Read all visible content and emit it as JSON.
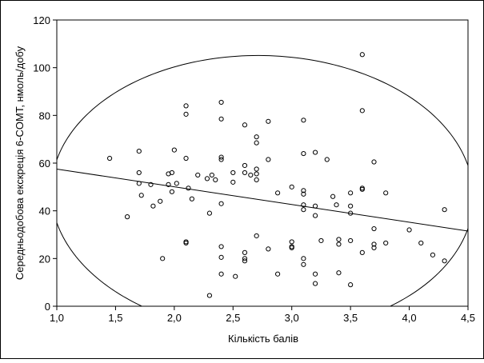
{
  "chart_data": {
    "type": "scatter",
    "title": "",
    "xlabel": "Кількість балів",
    "ylabel": "Середньодобова екскреція 6-COMT, нмоль/добу",
    "xlim": [
      1.0,
      4.5
    ],
    "ylim": [
      0,
      120
    ],
    "x_ticks": [
      "1,0",
      "1,5",
      "2,0",
      "2,5",
      "3,0",
      "3,5",
      "4,0",
      "4,5"
    ],
    "y_ticks": [
      "0",
      "20",
      "40",
      "60",
      "80",
      "100",
      "120"
    ],
    "grid": false,
    "legend": "none",
    "marker": "open-circle",
    "regression_line": {
      "x": [
        1.0,
        4.5
      ],
      "y": [
        57.5,
        31.5
      ]
    },
    "confidence_ellipse": {
      "center": [
        2.75,
        47.0
      ],
      "semi_axis_x": 1.8,
      "semi_axis_y": 58.0,
      "rotation_deg": -10
    },
    "points": [
      [
        1.45,
        62
      ],
      [
        1.6,
        37.5
      ],
      [
        1.7,
        65
      ],
      [
        1.7,
        56
      ],
      [
        1.7,
        51.5
      ],
      [
        1.72,
        46.5
      ],
      [
        1.8,
        51
      ],
      [
        1.82,
        42
      ],
      [
        1.88,
        44
      ],
      [
        1.9,
        20
      ],
      [
        1.95,
        55.5
      ],
      [
        1.95,
        51
      ],
      [
        1.98,
        56
      ],
      [
        1.98,
        48
      ],
      [
        2.0,
        65.5
      ],
      [
        2.02,
        51.5
      ],
      [
        2.1,
        84
      ],
      [
        2.1,
        80.5
      ],
      [
        2.1,
        62
      ],
      [
        2.1,
        27
      ],
      [
        2.1,
        26.5
      ],
      [
        2.12,
        49.5
      ],
      [
        2.15,
        45
      ],
      [
        2.2,
        55
      ],
      [
        2.28,
        53.5
      ],
      [
        2.3,
        39
      ],
      [
        2.3,
        4.5
      ],
      [
        2.32,
        55
      ],
      [
        2.35,
        53
      ],
      [
        2.4,
        85.5
      ],
      [
        2.4,
        78.5
      ],
      [
        2.4,
        62.5
      ],
      [
        2.4,
        61.5
      ],
      [
        2.4,
        43
      ],
      [
        2.4,
        25
      ],
      [
        2.4,
        20.5
      ],
      [
        2.4,
        13.5
      ],
      [
        2.5,
        56
      ],
      [
        2.5,
        52
      ],
      [
        2.52,
        12.5
      ],
      [
        2.6,
        76
      ],
      [
        2.6,
        59
      ],
      [
        2.6,
        56
      ],
      [
        2.6,
        22.5
      ],
      [
        2.6,
        20
      ],
      [
        2.6,
        19
      ],
      [
        2.65,
        55
      ],
      [
        2.7,
        71
      ],
      [
        2.7,
        68.5
      ],
      [
        2.7,
        57.5
      ],
      [
        2.7,
        55.5
      ],
      [
        2.7,
        53
      ],
      [
        2.7,
        29.5
      ],
      [
        2.8,
        77.5
      ],
      [
        2.8,
        61.5
      ],
      [
        2.8,
        24
      ],
      [
        2.88,
        47.5
      ],
      [
        2.88,
        13.5
      ],
      [
        3.0,
        50
      ],
      [
        3.0,
        27
      ],
      [
        3.0,
        25
      ],
      [
        3.0,
        24.5
      ],
      [
        3.1,
        78
      ],
      [
        3.1,
        64
      ],
      [
        3.1,
        48.5
      ],
      [
        3.1,
        47
      ],
      [
        3.1,
        42.5
      ],
      [
        3.1,
        40.5
      ],
      [
        3.1,
        20
      ],
      [
        3.1,
        17.5
      ],
      [
        3.2,
        64.5
      ],
      [
        3.2,
        42
      ],
      [
        3.2,
        38
      ],
      [
        3.2,
        13.5
      ],
      [
        3.2,
        9.5
      ],
      [
        3.3,
        61.5
      ],
      [
        3.25,
        27.5
      ],
      [
        3.35,
        46
      ],
      [
        3.38,
        42.5
      ],
      [
        3.4,
        28
      ],
      [
        3.4,
        26
      ],
      [
        3.4,
        14
      ],
      [
        3.5,
        47.5
      ],
      [
        3.5,
        42
      ],
      [
        3.5,
        39
      ],
      [
        3.5,
        27.5
      ],
      [
        3.5,
        9
      ],
      [
        3.6,
        105.5
      ],
      [
        3.6,
        82
      ],
      [
        3.6,
        49.5
      ],
      [
        3.6,
        49
      ],
      [
        3.6,
        22.5
      ],
      [
        3.7,
        60.5
      ],
      [
        3.7,
        32.5
      ],
      [
        3.7,
        26
      ],
      [
        3.7,
        24.5
      ],
      [
        3.8,
        47.5
      ],
      [
        3.8,
        26.5
      ],
      [
        4.0,
        32
      ],
      [
        4.1,
        26.5
      ],
      [
        4.2,
        21.5
      ],
      [
        4.3,
        40.5
      ],
      [
        4.3,
        19
      ]
    ]
  }
}
